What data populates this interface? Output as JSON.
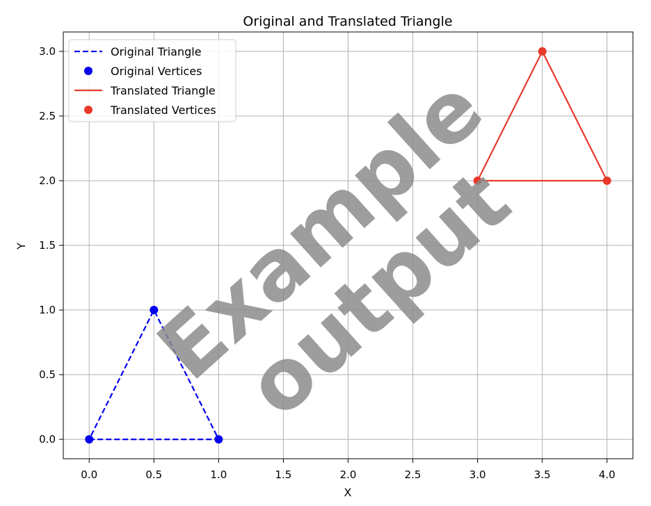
{
  "chart_data": {
    "type": "line",
    "title": "Original and Translated Triangle",
    "xlabel": "X",
    "ylabel": "Y",
    "xlim": [
      -0.2,
      4.2
    ],
    "ylim": [
      -0.15,
      3.15
    ],
    "x_ticks": [
      "0.0",
      "0.5",
      "1.0",
      "1.5",
      "2.0",
      "2.5",
      "3.0",
      "3.5",
      "4.0"
    ],
    "y_ticks": [
      "0.0",
      "0.5",
      "1.0",
      "1.5",
      "2.0",
      "2.5",
      "3.0"
    ],
    "grid": true,
    "legend_position": "top-left",
    "series": [
      {
        "name": "Original Triangle",
        "kind": "line",
        "style": "dashed",
        "color": "#0000ee",
        "x": [
          0,
          1,
          0.5,
          0
        ],
        "y": [
          0,
          0,
          1,
          0
        ]
      },
      {
        "name": "Original Vertices",
        "kind": "scatter",
        "color": "#0000ee",
        "x": [
          0,
          1,
          0.5
        ],
        "y": [
          0,
          0,
          1
        ]
      },
      {
        "name": "Translated Triangle",
        "kind": "line",
        "style": "solid",
        "color": "#e8392b",
        "x": [
          3,
          4,
          3.5,
          3
        ],
        "y": [
          2,
          2,
          3,
          2
        ]
      },
      {
        "name": "Translated Vertices",
        "kind": "scatter",
        "color": "#e8392b",
        "x": [
          3,
          4,
          3.5
        ],
        "y": [
          2,
          2,
          3
        ]
      }
    ]
  },
  "watermark": {
    "line1": "Example",
    "line2": "output"
  }
}
